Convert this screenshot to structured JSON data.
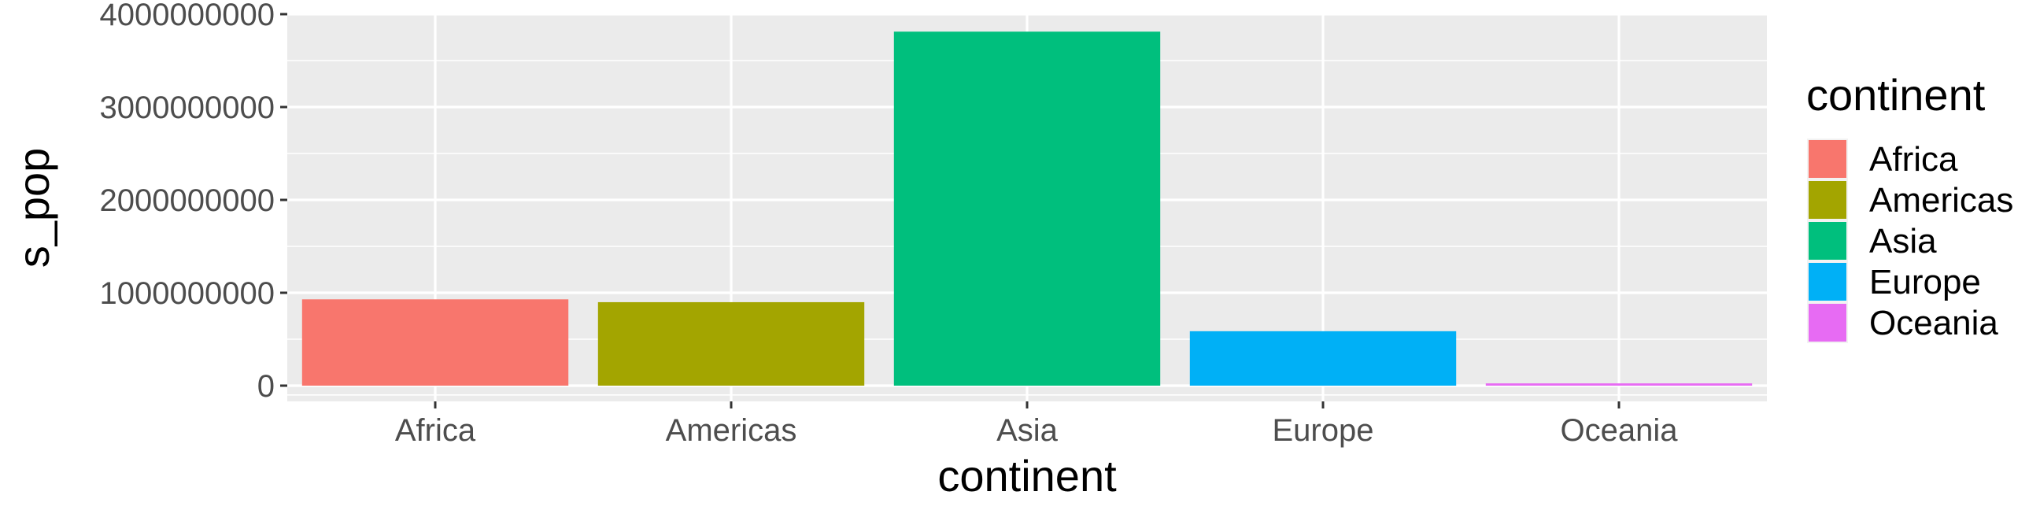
{
  "chart_data": {
    "type": "bar",
    "xlabel": "continent",
    "ylabel": "s_pop",
    "categories": [
      "Africa",
      "Americas",
      "Asia",
      "Europe",
      "Oceania"
    ],
    "values": [
      929539692,
      898871184,
      3811953827,
      586098529,
      24549947
    ],
    "colors": [
      "#F8766D",
      "#A3A500",
      "#00BF7D",
      "#00B0F6",
      "#E76BF3"
    ],
    "ylim": [
      -200000000,
      4000000000
    ],
    "yticks": [
      0,
      1000000000,
      2000000000,
      3000000000,
      4000000000
    ],
    "ytick_labels": [
      "0",
      "1000000000",
      "2000000000",
      "3000000000",
      "4000000000"
    ],
    "grid": true,
    "panel_background": "#EBEBEB",
    "legend": {
      "title": "continent",
      "position": "right",
      "entries": [
        "Africa",
        "Americas",
        "Asia",
        "Europe",
        "Oceania"
      ]
    }
  }
}
